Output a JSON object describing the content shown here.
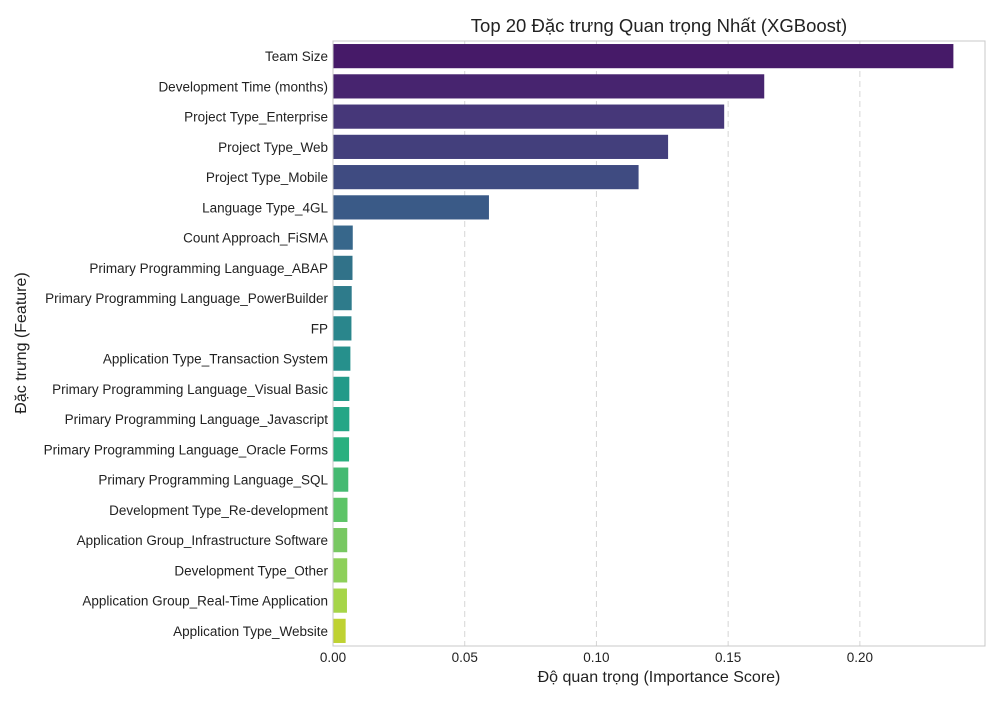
{
  "chart_data": {
    "type": "bar",
    "orientation": "horizontal",
    "title": "Top 20 Đặc trưng Quan trọng Nhất (XGBoost)",
    "xlabel": "Độ quan trọng (Importance Score)",
    "ylabel": "Đặc trưng (Feature)",
    "xlim": [
      0,
      0.2475
    ],
    "xticks": [
      0.0,
      0.05,
      0.1,
      0.15,
      0.2
    ],
    "xtick_labels": [
      "0.00",
      "0.05",
      "0.10",
      "0.15",
      "0.20"
    ],
    "grid": "vertical dashed",
    "colormap": "viridis",
    "categories": [
      "Team Size",
      "Development Time (months)",
      "Project Type_Enterprise",
      "Project Type_Web",
      "Project Type_Mobile",
      "Language Type_4GL",
      "Count Approach_FiSMA",
      "Primary Programming Language_ABAP",
      "Primary Programming Language_PowerBuilder",
      "FP",
      "Application Type_Transaction System",
      "Primary Programming Language_Visual Basic",
      "Primary Programming Language_Javascript",
      "Primary Programming Language_Oracle Forms",
      "Primary Programming Language_SQL",
      "Development Type_Re-development",
      "Application Group_Infrastructure Software",
      "Development Type_Other",
      "Application Group_Real-Time Application",
      "Application Type_Website"
    ],
    "values": [
      0.2355,
      0.1637,
      0.1485,
      0.1272,
      0.116,
      0.0592,
      0.0075,
      0.0074,
      0.0071,
      0.007,
      0.0066,
      0.0062,
      0.0062,
      0.0061,
      0.0058,
      0.0055,
      0.0054,
      0.0054,
      0.0053,
      0.0048
    ],
    "colors": [
      "#461a68",
      "#47246f",
      "#463779",
      "#433f7c",
      "#3f4b81",
      "#3a5a87",
      "#37678b",
      "#317289",
      "#2e7b8b",
      "#2a868c",
      "#26908c",
      "#239a89",
      "#24a686",
      "#2ab07f",
      "#45ba72",
      "#5dc467",
      "#78c862",
      "#8ed05a",
      "#a6d548",
      "#bfd232"
    ]
  }
}
